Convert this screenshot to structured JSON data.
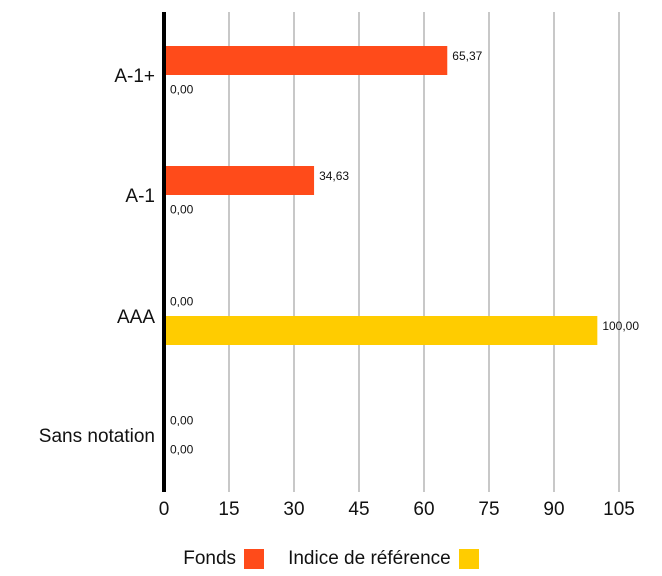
{
  "chart_data": {
    "type": "bar",
    "orientation": "horizontal",
    "categories": [
      "A-1+",
      "A-1",
      "AAA",
      "Sans notation"
    ],
    "series": [
      {
        "name": "Fonds",
        "color": "#ff4b1a",
        "values": [
          65.37,
          34.63,
          0.0,
          0.0
        ],
        "labels": [
          "65,37",
          "34,63",
          "0,00",
          "0,00"
        ]
      },
      {
        "name": "Indice de référence",
        "color": "#ffcc00",
        "values": [
          0.0,
          0.0,
          100.0,
          0.0
        ],
        "labels": [
          "0,00",
          "0,00",
          "100,00",
          "0,00"
        ]
      }
    ],
    "xlim": [
      0,
      105
    ],
    "xticks": [
      "0",
      "15",
      "30",
      "45",
      "60",
      "75",
      "90",
      "105"
    ],
    "grid": true,
    "legend_position": "bottom"
  }
}
